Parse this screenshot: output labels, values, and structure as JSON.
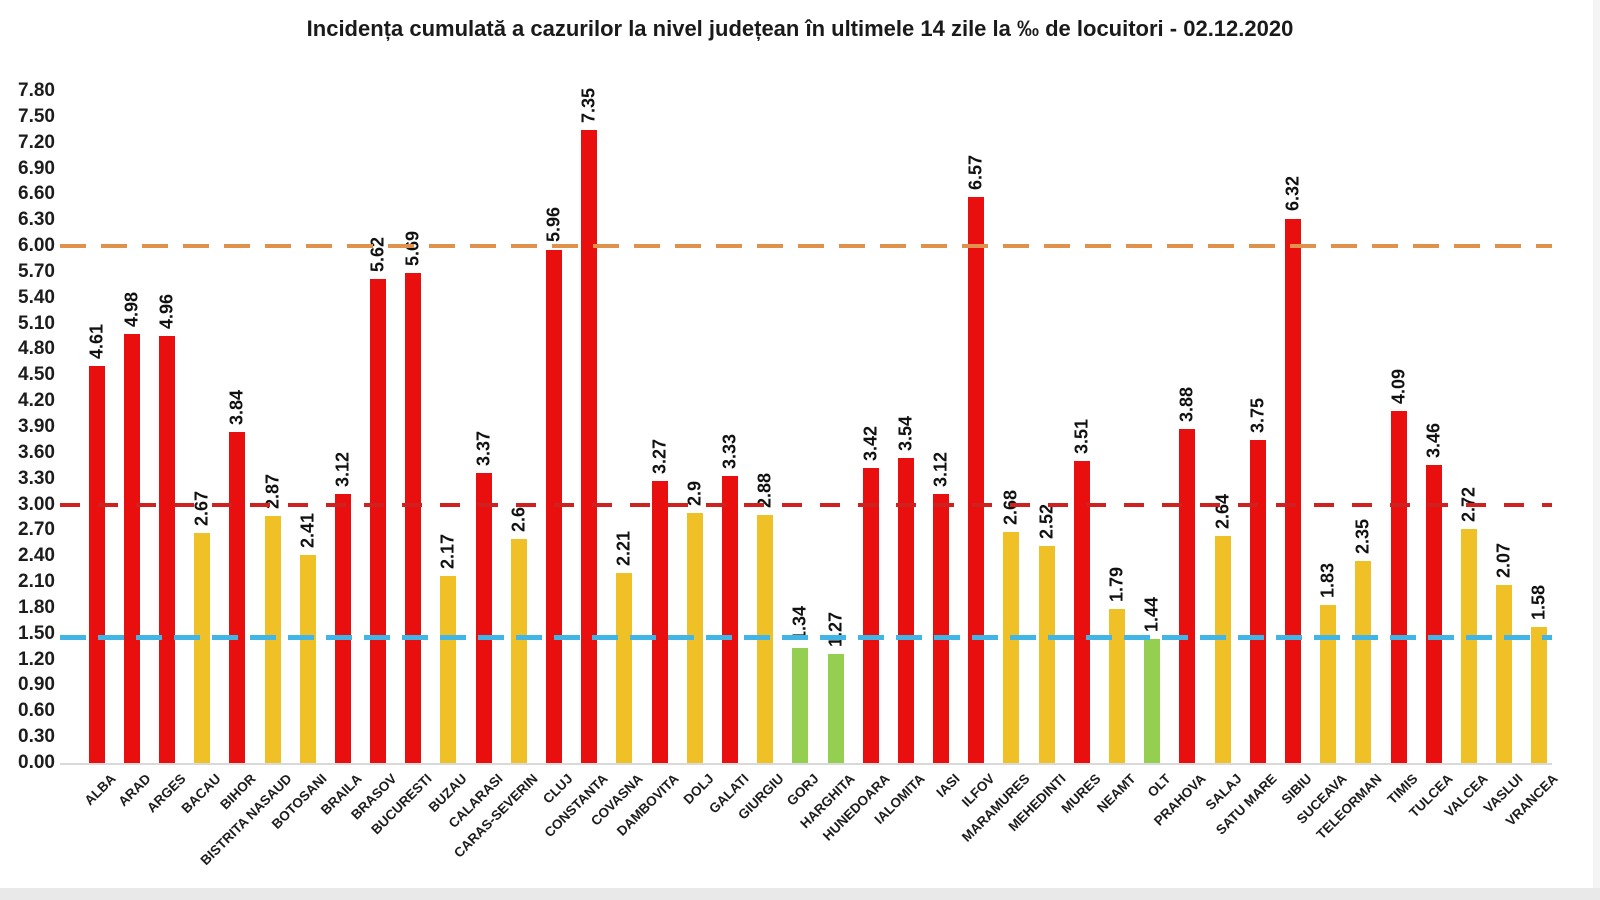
{
  "chart_data": {
    "type": "bar",
    "title": "Incidența cumulată a cazurilor la nivel județean în ultimele 14 zile la ‰ de locuitori - 02.12.2020",
    "xlabel": "",
    "ylabel": "",
    "ylim": [
      0,
      7.8
    ],
    "grid": "off",
    "legend": "none",
    "categories": [
      "ALBA",
      "ARAD",
      "ARGES",
      "BACAU",
      "BIHOR",
      "BISTRITA NASAUD",
      "BOTOSANI",
      "BRAILA",
      "BRASOV",
      "BUCURESTI",
      "BUZAU",
      "CALARASI",
      "CARAS-SEVERIN",
      "CLUJ",
      "CONSTANTA",
      "COVASNA",
      "DAMBOVITA",
      "DOLJ",
      "GALATI",
      "GIURGIU",
      "GORJ",
      "HARGHITA",
      "HUNEDOARA",
      "IALOMITA",
      "IASI",
      "ILFOV",
      "MARAMURES",
      "MEHEDINTI",
      "MURES",
      "NEAMT",
      "OLT",
      "PRAHOVA",
      "SALAJ",
      "SATU MARE",
      "SIBIU",
      "SUCEAVA",
      "TELEORMAN",
      "TIMIS",
      "TULCEA",
      "VALCEA",
      "VASLUI",
      "VRANCEA"
    ],
    "values": [
      4.61,
      4.98,
      4.96,
      2.67,
      3.84,
      2.87,
      2.41,
      3.12,
      5.62,
      5.69,
      2.17,
      3.37,
      2.6,
      5.96,
      7.35,
      2.21,
      3.27,
      2.9,
      3.33,
      2.88,
      1.34,
      1.27,
      3.42,
      3.54,
      3.12,
      6.57,
      2.68,
      2.52,
      3.51,
      1.79,
      1.44,
      3.88,
      2.64,
      3.75,
      6.32,
      1.83,
      2.35,
      4.09,
      3.46,
      2.72,
      2.07,
      1.58
    ],
    "value_labels": [
      "4.61",
      "4.98",
      "4.96",
      "2.67",
      "3.84",
      "2.87",
      "2.41",
      "3.12",
      "5.62",
      "5.69",
      "2.17",
      "3.37",
      "2.6",
      "5.96",
      "7.35",
      "2.21",
      "3.27",
      "2.9",
      "3.33",
      "2.88",
      "1.34",
      "1.27",
      "3.42",
      "3.54",
      "3.12",
      "6.57",
      "2.68",
      "2.52",
      "3.51",
      "1.79",
      "1.44",
      "3.88",
      "2.64",
      "3.75",
      "6.32",
      "1.83",
      "2.35",
      "4.09",
      "3.46",
      "2.72",
      "2.07",
      "1.58"
    ],
    "y_ticks": [
      "0.00",
      "0.30",
      "0.60",
      "0.90",
      "1.20",
      "1.50",
      "1.80",
      "2.10",
      "2.40",
      "2.70",
      "3.00",
      "3.30",
      "3.60",
      "3.90",
      "4.20",
      "4.50",
      "4.80",
      "5.10",
      "5.40",
      "5.70",
      "6.00",
      "6.30",
      "6.60",
      "6.90",
      "7.20",
      "7.50",
      "7.80"
    ],
    "bar_colors": {
      "high": "#e90f0f",
      "mid": "#f0c127",
      "low": "#94cf52"
    },
    "color_thresholds": {
      "high_min": 3.0,
      "mid_min": 1.5
    },
    "reference_lines": [
      {
        "key": "orange",
        "value": 6.0,
        "color": "#e0924d"
      },
      {
        "key": "red",
        "value": 3.0,
        "color": "#d02121"
      },
      {
        "key": "blue",
        "value": 1.45,
        "color": "#41b6e6"
      }
    ],
    "axis_color": "#d9d9d9",
    "text_color": "#1c1c1c"
  }
}
